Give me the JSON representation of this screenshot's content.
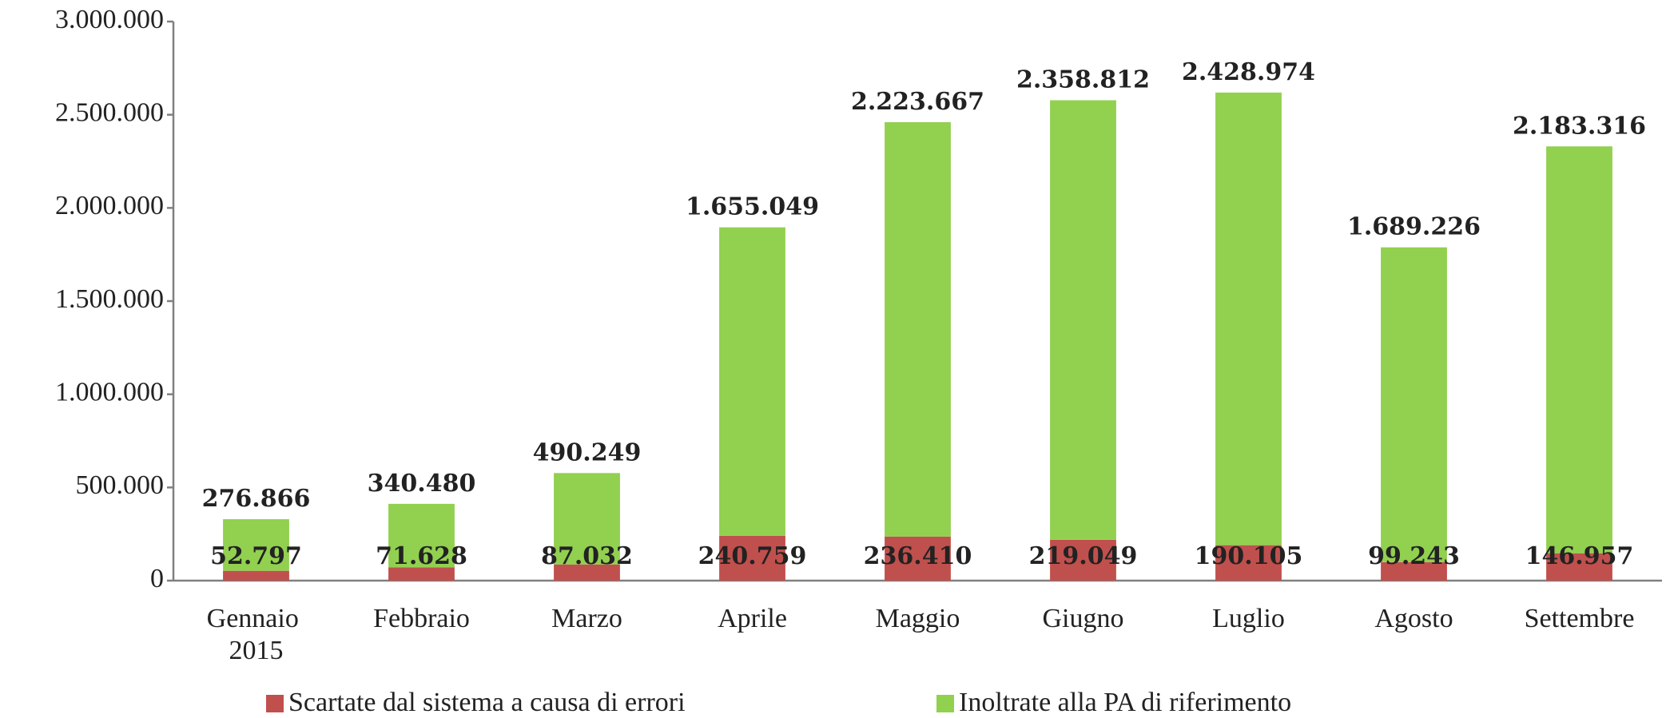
{
  "chart_data": {
    "type": "stacked_bar",
    "categories": [
      "Gennaio 2015",
      "Febbraio",
      "Marzo",
      "Aprile",
      "Maggio",
      "Giugno",
      "Luglio",
      "Agosto",
      "Settembre"
    ],
    "series": [
      {
        "name": "Scartate dal sistema a causa di errori",
        "color": "#c0504d",
        "values": [
          52797,
          71628,
          87032,
          240759,
          236410,
          219049,
          190105,
          99243,
          146957
        ],
        "value_labels": [
          "52.797",
          "71.628",
          "87.032",
          "240.759",
          "236.410",
          "219.049",
          "190.105",
          "99.243",
          "146.957"
        ]
      },
      {
        "name": "Inoltrate alla PA di riferimento",
        "color": "#92d050",
        "values": [
          276866,
          340480,
          490249,
          1655049,
          2223667,
          2358812,
          2428974,
          1689226,
          2183316
        ],
        "value_labels": [
          "276.866",
          "340.480",
          "490.249",
          "1.655.049",
          "2.223.667",
          "2.358.812",
          "2.428.974",
          "1.689.226",
          "2.183.316"
        ]
      }
    ],
    "ylim": [
      0,
      3000000
    ],
    "yticks": [
      0,
      {
        "value": 500000,
        "label": "500.000"
      },
      {
        "value": 1000000,
        "label": "1.000.000"
      },
      {
        "value": 1500000,
        "label": "1.500.000"
      },
      {
        "value": 2000000,
        "label": "2.000.000"
      },
      {
        "value": 2500000,
        "label": "2.500.000"
      },
      {
        "value": 3000000,
        "label": "3.000.000"
      }
    ],
    "legend": "bottom"
  }
}
